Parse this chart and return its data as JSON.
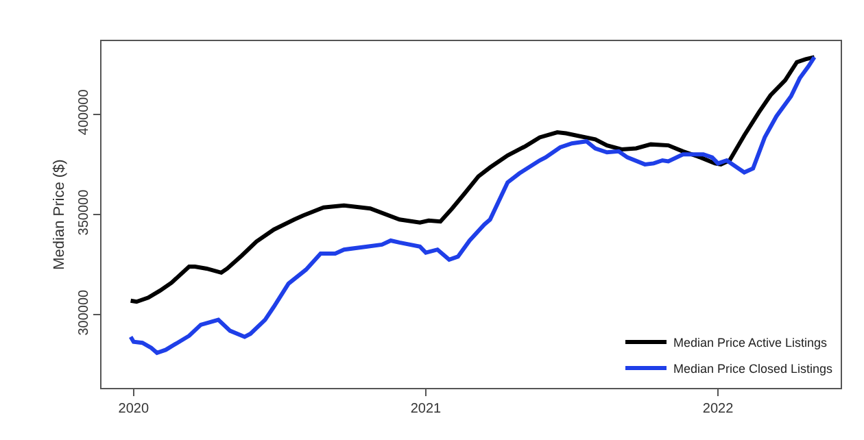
{
  "chart_data": {
    "type": "line",
    "ylabel": "Median Price ($)",
    "xlim": [
      2019.89,
      2022.42
    ],
    "xticks": [
      2020,
      2021,
      2022
    ],
    "ylim": [
      263500,
      436500
    ],
    "yticks": [
      300000,
      350000,
      400000
    ],
    "legend": "bottom right",
    "marker": "none",
    "line_style": "solid",
    "series": [
      {
        "name": "Median Price Active Listings",
        "color": "#000000",
        "x": [
          2019.99,
          2020.01,
          2020.05,
          2020.09,
          2020.13,
          2020.19,
          2020.21,
          2020.25,
          2020.3,
          2020.32,
          2020.37,
          2020.42,
          2020.48,
          2020.55,
          2020.58,
          2020.65,
          2020.72,
          2020.75,
          2020.81,
          2020.91,
          2020.98,
          2021.01,
          2021.05,
          2021.09,
          2021.13,
          2021.18,
          2021.22,
          2021.28,
          2021.34,
          2021.39,
          2021.45,
          2021.48,
          2021.53,
          2021.58,
          2021.62,
          2021.67,
          2021.72,
          2021.77,
          2021.83,
          2021.88,
          2021.94,
          2021.99,
          2022.01,
          2022.04,
          2022.09,
          2022.14,
          2022.18,
          2022.23,
          2022.27,
          2022.3,
          2022.33
        ],
        "values": [
          307000,
          306500,
          308500,
          312000,
          316000,
          324000,
          324000,
          323000,
          321000,
          323000,
          329500,
          336500,
          342500,
          347500,
          349500,
          353500,
          354500,
          354000,
          353000,
          347500,
          346000,
          347000,
          346500,
          353000,
          360000,
          369000,
          373500,
          379500,
          384000,
          388500,
          391000,
          390500,
          389000,
          387500,
          384500,
          382500,
          383000,
          385000,
          384500,
          381500,
          378500,
          375500,
          375000,
          377000,
          389500,
          401000,
          409500,
          417000,
          426000,
          427500,
          428500
        ]
      },
      {
        "name": "Median Price Closed Listings",
        "color": "#1f3fe8",
        "x": [
          2019.99,
          2020.0,
          2020.03,
          2020.06,
          2020.08,
          2020.11,
          2020.15,
          2020.19,
          2020.23,
          2020.29,
          2020.33,
          2020.38,
          2020.4,
          2020.45,
          2020.48,
          2020.53,
          2020.59,
          2020.64,
          2020.69,
          2020.72,
          2020.8,
          2020.85,
          2020.88,
          2020.91,
          2020.98,
          2021.0,
          2021.04,
          2021.08,
          2021.11,
          2021.15,
          2021.2,
          2021.22,
          2021.28,
          2021.32,
          2021.39,
          2021.41,
          2021.46,
          2021.5,
          2021.55,
          2021.58,
          2021.62,
          2021.66,
          2021.69,
          2021.75,
          2021.78,
          2021.81,
          2021.83,
          2021.88,
          2021.95,
          2021.98,
          2022.0,
          2022.03,
          2022.07,
          2022.09,
          2022.12,
          2022.16,
          2022.2,
          2022.25,
          2022.28,
          2022.31,
          2022.33
        ],
        "values": [
          289000,
          286500,
          286000,
          283500,
          281000,
          282500,
          286000,
          289500,
          295000,
          297500,
          292000,
          289000,
          290500,
          297500,
          304000,
          315500,
          322500,
          330500,
          330500,
          332500,
          334000,
          335000,
          337000,
          336000,
          334000,
          331000,
          332500,
          327500,
          329000,
          337000,
          345000,
          347500,
          366000,
          370500,
          377000,
          378500,
          383500,
          385500,
          386500,
          383000,
          381000,
          381500,
          378500,
          375000,
          375500,
          377000,
          376500,
          380000,
          380000,
          378500,
          375500,
          377000,
          373000,
          371000,
          373000,
          388500,
          399000,
          409000,
          418000,
          424000,
          428500
        ]
      }
    ]
  }
}
